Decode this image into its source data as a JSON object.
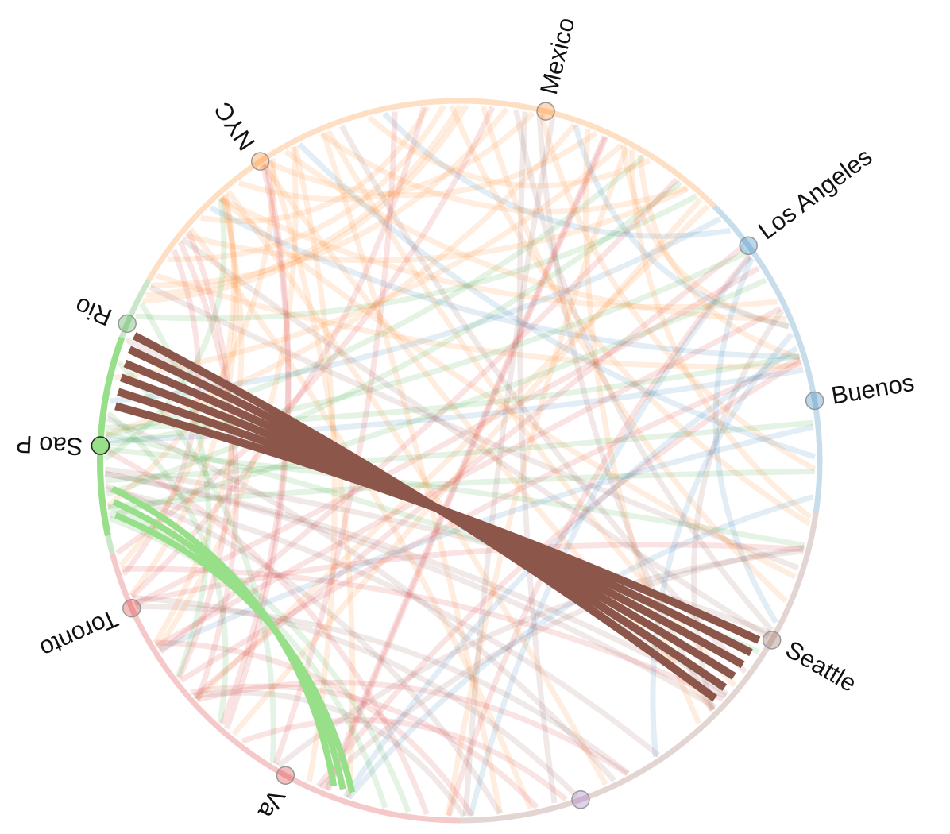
{
  "nodes": [
    {
      "label": "Mexico"
    },
    {
      "label": "Los Angeles"
    },
    {
      "label": "Buenos"
    },
    {
      "label": "Seattle"
    },
    {
      "label": "Va"
    },
    {
      "label": "Toronto"
    },
    {
      "label": "Sao P"
    },
    {
      "label": "Rio"
    },
    {
      "label": "NYC"
    }
  ]
}
